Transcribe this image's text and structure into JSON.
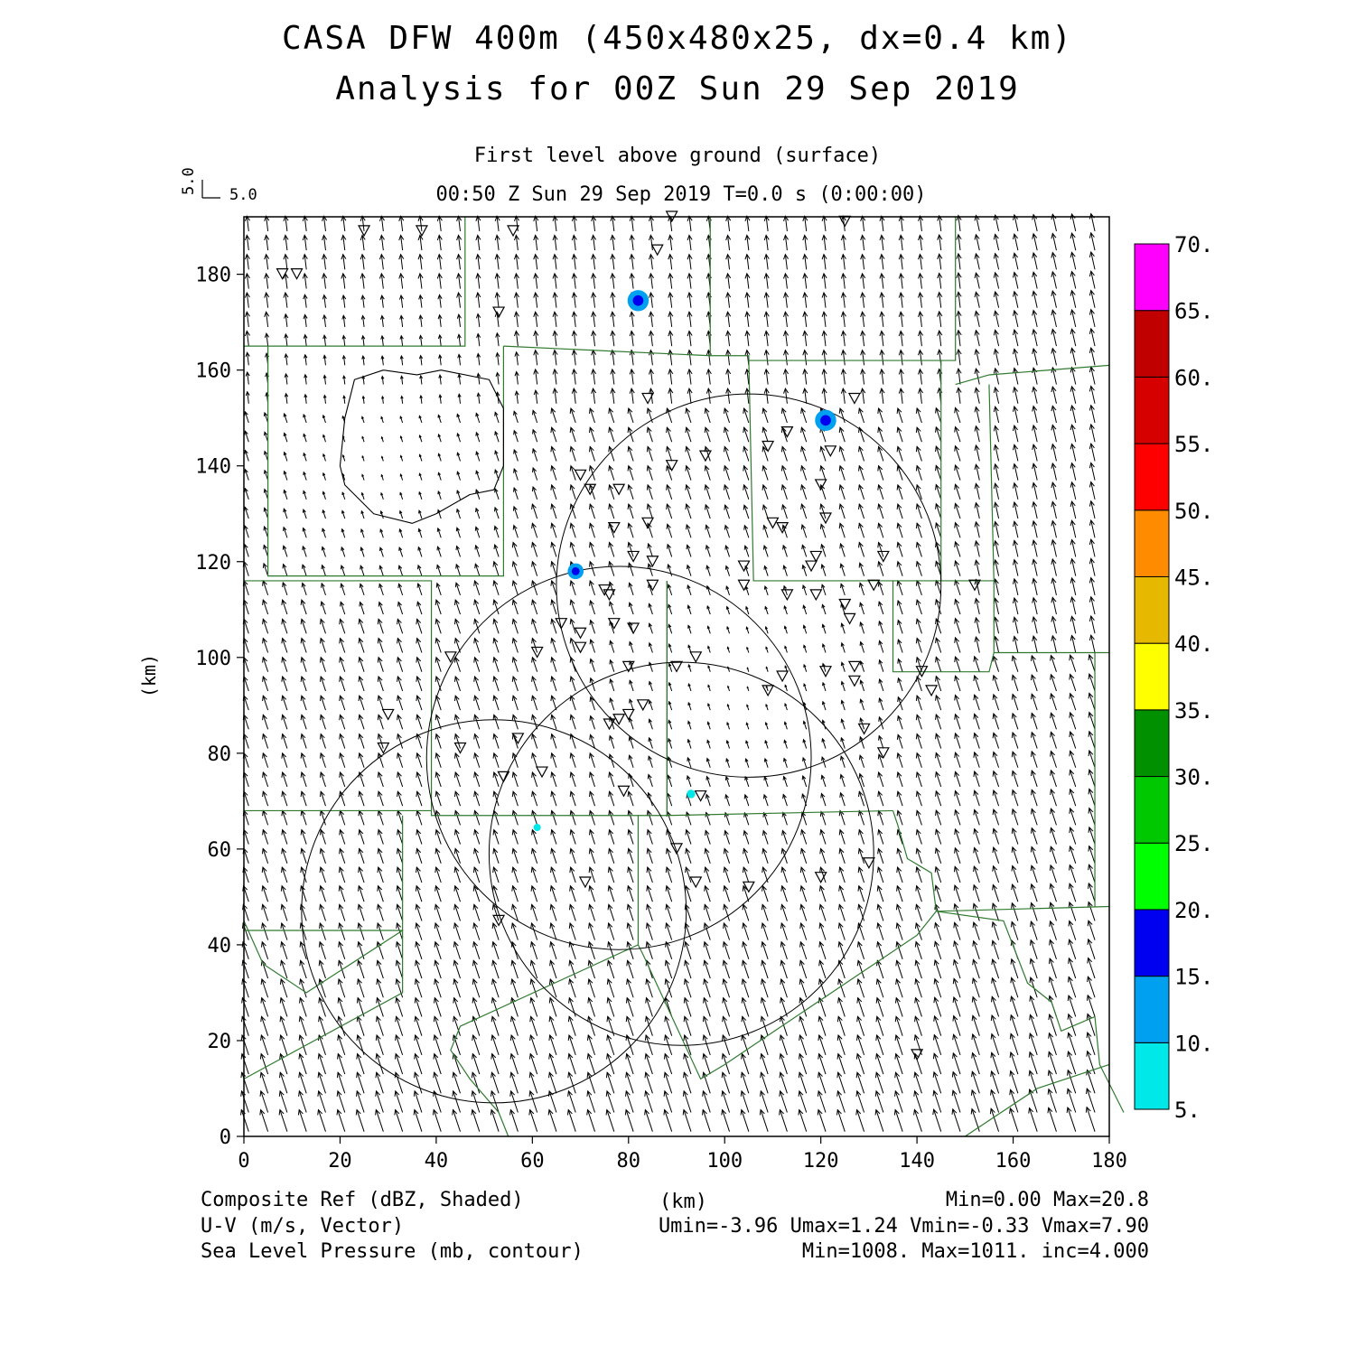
{
  "title_line1": "CASA DFW 400m (450x480x25, dx=0.4 km)",
  "title_line2": "Analysis for 00Z Sun 29 Sep 2019",
  "level_label": "First level above ground (surface)",
  "time_label": "00:50 Z Sun 29 Sep 2019    T=0.0 s (0:00:00)",
  "vector_key": {
    "u_label": "5.0",
    "v_label": "5.0"
  },
  "footer": {
    "left1": "Composite Ref (dBZ, Shaded)",
    "center1": "(km)",
    "right1": "Min=0.00 Max=20.8",
    "left2": "U-V (m/s, Vector)",
    "right2": "Umin=-3.96 Umax=1.24 Vmin=-0.33 Vmax=7.90",
    "left3": "Sea Level Pressure (mb, contour)",
    "right3": "Min=1008. Max=1011. inc=4.000"
  },
  "chart_data": {
    "type": "heatmap",
    "xlabel": "(km)",
    "ylabel": "(km)",
    "xlim": [
      0,
      180
    ],
    "ylim": [
      0,
      192
    ],
    "x_ticks": [
      0,
      20,
      40,
      60,
      80,
      100,
      120,
      140,
      160,
      180
    ],
    "y_ticks": [
      0,
      20,
      40,
      60,
      80,
      100,
      120,
      140,
      160,
      180
    ],
    "colorbar": {
      "levels": [
        5,
        10,
        15,
        20,
        25,
        30,
        35,
        40,
        45,
        50,
        55,
        60,
        65,
        70
      ],
      "labels": [
        "5.",
        "10.",
        "15.",
        "20.",
        "25.",
        "30.",
        "35.",
        "40.",
        "45.",
        "50.",
        "55.",
        "60.",
        "65.",
        "70."
      ],
      "colors": [
        "#00e8e8",
        "#00a0f0",
        "#0000f0",
        "#00ff00",
        "#00c800",
        "#009000",
        "#ffff00",
        "#e6b800",
        "#ff8c00",
        "#ff0000",
        "#d60000",
        "#c00000",
        "#ff00ff"
      ]
    },
    "reflectivity_cells": [
      {
        "x": 82.0,
        "y": 174.5,
        "r": 2.0,
        "dbz": 16
      },
      {
        "x": 121.0,
        "y": 149.5,
        "r": 2.0,
        "dbz": 16
      },
      {
        "x": 69.0,
        "y": 118.0,
        "r": 1.5,
        "dbz": 15
      },
      {
        "x": 93.0,
        "y": 71.5,
        "r": 0.8,
        "dbz": 10
      },
      {
        "x": 61.0,
        "y": 64.5,
        "r": 0.5,
        "dbz": 6
      }
    ],
    "pressure_contours": [
      {
        "value": 1008,
        "points": [
          [
            29,
            160
          ],
          [
            23,
            158
          ],
          [
            21,
            150
          ],
          [
            20,
            140
          ],
          [
            21,
            136
          ],
          [
            27,
            130
          ],
          [
            35,
            128
          ],
          [
            40,
            130
          ],
          [
            47,
            134
          ],
          [
            52,
            135
          ],
          [
            54,
            140
          ],
          [
            54,
            152
          ],
          [
            51,
            158
          ],
          [
            41,
            160
          ],
          [
            36,
            159
          ],
          [
            29,
            160
          ]
        ]
      }
    ],
    "radar_circles": [
      {
        "cx": 105,
        "cy": 115,
        "r": 40
      },
      {
        "cx": 78,
        "cy": 79,
        "r": 40
      },
      {
        "cx": 52,
        "cy": 47,
        "r": 40
      },
      {
        "cx": 91,
        "cy": 59,
        "r": 40
      }
    ],
    "stations": [
      [
        8,
        180
      ],
      [
        11,
        180
      ],
      [
        25,
        189
      ],
      [
        37,
        189
      ],
      [
        53,
        172
      ],
      [
        70,
        138
      ],
      [
        56,
        189
      ],
      [
        84,
        154
      ],
      [
        89,
        140
      ],
      [
        96,
        142
      ],
      [
        109,
        144
      ],
      [
        113,
        147
      ],
      [
        110,
        128
      ],
      [
        112,
        127
      ],
      [
        119,
        121
      ],
      [
        118,
        119
      ],
      [
        127,
        154
      ],
      [
        122,
        143
      ],
      [
        120,
        136
      ],
      [
        121,
        129
      ],
      [
        104,
        119
      ],
      [
        104,
        115
      ],
      [
        113,
        113
      ],
      [
        119,
        113
      ],
      [
        125,
        111
      ],
      [
        126,
        108
      ],
      [
        131,
        115
      ],
      [
        133,
        121
      ],
      [
        127,
        98
      ],
      [
        127,
        95
      ],
      [
        121,
        97
      ],
      [
        112,
        96
      ],
      [
        109,
        93
      ],
      [
        129,
        85
      ],
      [
        133,
        80
      ],
      [
        141,
        97
      ],
      [
        143,
        93
      ],
      [
        152,
        115
      ],
      [
        72,
        135
      ],
      [
        78,
        135
      ],
      [
        77,
        127
      ],
      [
        84,
        128
      ],
      [
        81,
        121
      ],
      [
        85,
        120
      ],
      [
        85,
        115
      ],
      [
        75,
        114
      ],
      [
        76,
        113
      ],
      [
        77,
        107
      ],
      [
        81,
        106
      ],
      [
        66,
        107
      ],
      [
        70,
        105
      ],
      [
        70,
        102
      ],
      [
        61,
        101
      ],
      [
        43,
        100
      ],
      [
        30,
        88
      ],
      [
        29,
        81
      ],
      [
        45,
        81
      ],
      [
        54,
        75
      ],
      [
        57,
        83
      ],
      [
        62,
        76
      ],
      [
        80,
        98
      ],
      [
        90,
        98
      ],
      [
        94,
        100
      ],
      [
        80,
        88
      ],
      [
        83,
        90
      ],
      [
        78,
        87
      ],
      [
        76,
        86
      ],
      [
        79,
        72
      ],
      [
        95,
        71
      ],
      [
        71,
        53
      ],
      [
        94,
        53
      ],
      [
        105,
        52
      ],
      [
        90,
        60
      ],
      [
        120,
        54
      ],
      [
        130,
        57
      ],
      [
        53,
        45
      ],
      [
        140,
        17
      ],
      [
        89,
        192
      ],
      [
        86,
        185
      ],
      [
        125,
        191
      ]
    ],
    "county_lines": [
      [
        [
          0,
          165
        ],
        [
          46,
          165
        ],
        [
          46,
          192
        ]
      ],
      [
        [
          5,
          165
        ],
        [
          5,
          117
        ],
        [
          54,
          117
        ],
        [
          54,
          165
        ]
      ],
      [
        [
          54,
          165
        ],
        [
          97,
          163
        ],
        [
          105,
          163
        ],
        [
          106,
          116
        ],
        [
          145,
          116
        ],
        [
          145,
          162
        ],
        [
          105,
          162
        ]
      ],
      [
        [
          97,
          192
        ],
        [
          97,
          163
        ]
      ],
      [
        [
          145,
          162
        ],
        [
          148,
          162
        ],
        [
          148,
          192
        ]
      ],
      [
        [
          148,
          157
        ],
        [
          155,
          159
        ],
        [
          180,
          161
        ]
      ],
      [
        [
          155,
          157
        ],
        [
          156,
          116
        ],
        [
          156,
          101
        ],
        [
          180,
          101
        ]
      ],
      [
        [
          145,
          116
        ],
        [
          156,
          116
        ]
      ],
      [
        [
          0,
          116
        ],
        [
          39,
          116
        ],
        [
          39,
          67
        ],
        [
          88,
          67
        ],
        [
          88,
          116
        ]
      ],
      [
        [
          0,
          68
        ],
        [
          39,
          68
        ]
      ],
      [
        [
          88,
          116
        ],
        [
          88,
          67
        ],
        [
          135,
          68
        ]
      ],
      [
        [
          135,
          116
        ],
        [
          135,
          97
        ],
        [
          155,
          97
        ],
        [
          156,
          101
        ]
      ],
      [
        [
          135,
          68
        ],
        [
          136,
          65
        ],
        [
          138,
          58
        ],
        [
          143,
          55
        ],
        [
          144,
          47
        ],
        [
          180,
          48
        ]
      ],
      [
        [
          177,
          101
        ],
        [
          177,
          48
        ]
      ],
      [
        [
          144,
          47
        ],
        [
          158,
          45
        ],
        [
          163,
          32
        ],
        [
          168,
          28
        ],
        [
          170,
          22
        ],
        [
          177,
          25
        ],
        [
          178,
          15
        ],
        [
          183,
          5
        ]
      ],
      [
        [
          0,
          43
        ],
        [
          33,
          43
        ],
        [
          33,
          30
        ],
        [
          0,
          12
        ]
      ],
      [
        [
          33,
          43
        ],
        [
          33,
          67
        ]
      ],
      [
        [
          0,
          45
        ],
        [
          4,
          36
        ],
        [
          13,
          30
        ],
        [
          33,
          43
        ]
      ],
      [
        [
          82,
          67
        ],
        [
          82,
          40
        ],
        [
          45,
          23
        ],
        [
          43,
          18
        ],
        [
          47,
          12
        ],
        [
          53,
          5
        ],
        [
          55,
          0
        ]
      ],
      [
        [
          82,
          40
        ],
        [
          83,
          38
        ],
        [
          95,
          12
        ],
        [
          100,
          15
        ],
        [
          140,
          42
        ],
        [
          144,
          47
        ]
      ],
      [
        [
          150,
          0
        ],
        [
          165,
          10
        ],
        [
          180,
          15
        ]
      ]
    ],
    "wind_field": {
      "spacing_km": 4.0,
      "description": "Mostly south-southeasterly winds (northward flow), weak in the central basin region, stronger along southern and eastern edges"
    }
  }
}
